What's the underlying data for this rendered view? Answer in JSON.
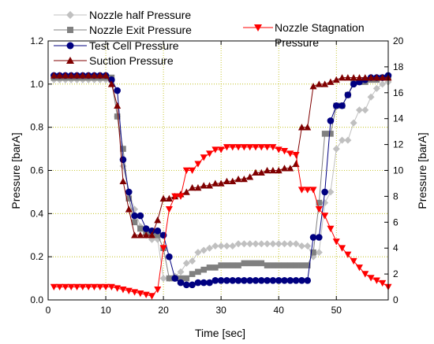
{
  "chart_data": {
    "type": "line",
    "xlabel": "Time [sec]",
    "ylabel_left": "Pressure [barA]",
    "ylabel_right": "Pressure [barA]",
    "xlim": [
      0,
      59
    ],
    "ylim_left": [
      0,
      1.2
    ],
    "ylim_right": [
      0,
      20
    ],
    "xticks": [
      "0",
      "10",
      "20",
      "30",
      "40",
      "50"
    ],
    "yticks_left": [
      "0.0",
      "0.2",
      "0.4",
      "0.6",
      "0.8",
      "1.0",
      "1.2"
    ],
    "yticks_right": [
      "0",
      "2",
      "4",
      "6",
      "8",
      "10",
      "12",
      "14",
      "16",
      "18",
      "20"
    ],
    "grid": true,
    "legend_left": "top-left",
    "legend_right": "top-right",
    "series": [
      {
        "name": "Nozzle half Pressure",
        "axis": "left",
        "marker": "diamond",
        "color": "#c0c0c0",
        "x": [
          1,
          2,
          3,
          4,
          5,
          6,
          7,
          8,
          9,
          10,
          11,
          12,
          13,
          14,
          15,
          16,
          17,
          18,
          19,
          20,
          21,
          22,
          23,
          24,
          25,
          26,
          27,
          28,
          29,
          30,
          31,
          32,
          33,
          34,
          35,
          36,
          37,
          38,
          39,
          40,
          41,
          42,
          43,
          44,
          45,
          46,
          47,
          48,
          49,
          50,
          51,
          52,
          53,
          54,
          55,
          56,
          57,
          58,
          59
        ],
        "values": [
          1.02,
          1.02,
          1.02,
          1.02,
          1.02,
          1.02,
          1.02,
          1.02,
          1.02,
          1.02,
          1.01,
          0.85,
          0.62,
          0.5,
          0.42,
          0.34,
          0.3,
          0.28,
          0.28,
          0.1,
          0.1,
          0.11,
          0.13,
          0.17,
          0.18,
          0.22,
          0.23,
          0.24,
          0.25,
          0.25,
          0.25,
          0.25,
          0.26,
          0.26,
          0.26,
          0.26,
          0.26,
          0.26,
          0.26,
          0.26,
          0.26,
          0.26,
          0.26,
          0.25,
          0.25,
          0.2,
          0.22,
          0.45,
          0.5,
          0.7,
          0.74,
          0.74,
          0.82,
          0.88,
          0.88,
          0.94,
          0.98,
          1.0,
          1.01
        ]
      },
      {
        "name": "Nozzle Exit Pressure",
        "axis": "left",
        "marker": "square",
        "color": "#808080",
        "x": [
          1,
          2,
          3,
          4,
          5,
          6,
          7,
          8,
          9,
          10,
          11,
          12,
          13,
          14,
          15,
          16,
          17,
          18,
          19,
          20,
          21,
          22,
          23,
          24,
          25,
          26,
          27,
          28,
          29,
          30,
          31,
          32,
          33,
          34,
          35,
          36,
          37,
          38,
          39,
          40,
          41,
          42,
          43,
          44,
          45,
          46,
          47,
          48,
          49,
          50,
          51,
          52,
          53,
          54,
          55,
          56,
          57,
          58,
          59
        ],
        "values": [
          1.03,
          1.03,
          1.03,
          1.03,
          1.03,
          1.03,
          1.03,
          1.03,
          1.03,
          1.03,
          1.03,
          0.85,
          0.7,
          0.47,
          0.36,
          0.33,
          0.31,
          0.3,
          0.3,
          0.24,
          0.1,
          0.1,
          0.1,
          0.1,
          0.12,
          0.13,
          0.14,
          0.15,
          0.15,
          0.16,
          0.16,
          0.16,
          0.16,
          0.17,
          0.17,
          0.17,
          0.17,
          0.16,
          0.16,
          0.16,
          0.16,
          0.16,
          0.16,
          0.16,
          0.16,
          0.22,
          0.45,
          0.77,
          0.77,
          0.9,
          0.9,
          0.95,
          1.01,
          1.01,
          1.01,
          1.02,
          1.02,
          1.03,
          1.03
        ]
      },
      {
        "name": "Test Cell Pressure",
        "axis": "left",
        "marker": "circle",
        "color": "#000080",
        "x": [
          1,
          2,
          3,
          4,
          5,
          6,
          7,
          8,
          9,
          10,
          11,
          12,
          13,
          14,
          15,
          16,
          17,
          18,
          19,
          20,
          21,
          22,
          23,
          24,
          25,
          26,
          27,
          28,
          29,
          30,
          31,
          32,
          33,
          34,
          35,
          36,
          37,
          38,
          39,
          40,
          41,
          42,
          43,
          44,
          45,
          46,
          47,
          48,
          49,
          50,
          51,
          52,
          53,
          54,
          55,
          56,
          57,
          58,
          59
        ],
        "values": [
          1.04,
          1.04,
          1.04,
          1.04,
          1.04,
          1.04,
          1.04,
          1.04,
          1.04,
          1.04,
          1.02,
          0.97,
          0.65,
          0.5,
          0.39,
          0.39,
          0.33,
          0.32,
          0.32,
          0.3,
          0.2,
          0.1,
          0.08,
          0.07,
          0.07,
          0.08,
          0.08,
          0.08,
          0.09,
          0.09,
          0.09,
          0.09,
          0.09,
          0.09,
          0.09,
          0.09,
          0.09,
          0.09,
          0.09,
          0.09,
          0.09,
          0.09,
          0.09,
          0.09,
          0.09,
          0.29,
          0.29,
          0.5,
          0.83,
          0.9,
          0.9,
          0.95,
          1.0,
          1.01,
          1.02,
          1.03,
          1.03,
          1.03,
          1.04
        ]
      },
      {
        "name": "Suction Pressure",
        "axis": "left",
        "marker": "triangle-up",
        "color": "#800000",
        "x": [
          1,
          2,
          3,
          4,
          5,
          6,
          7,
          8,
          9,
          10,
          11,
          12,
          13,
          14,
          15,
          16,
          17,
          18,
          19,
          20,
          21,
          22,
          23,
          24,
          25,
          26,
          27,
          28,
          29,
          30,
          31,
          32,
          33,
          34,
          35,
          36,
          37,
          38,
          39,
          40,
          41,
          42,
          43,
          44,
          45,
          46,
          47,
          48,
          49,
          50,
          51,
          52,
          53,
          54,
          55,
          56,
          57,
          58,
          59
        ],
        "values": [
          1.04,
          1.04,
          1.04,
          1.04,
          1.04,
          1.04,
          1.04,
          1.04,
          1.04,
          1.04,
          1.0,
          0.9,
          0.55,
          0.42,
          0.3,
          0.3,
          0.3,
          0.3,
          0.37,
          0.47,
          0.47,
          0.48,
          0.49,
          0.5,
          0.52,
          0.52,
          0.53,
          0.53,
          0.54,
          0.54,
          0.55,
          0.55,
          0.56,
          0.56,
          0.57,
          0.59,
          0.59,
          0.6,
          0.6,
          0.6,
          0.61,
          0.61,
          0.63,
          0.8,
          0.8,
          0.99,
          1.0,
          1.0,
          1.01,
          1.02,
          1.03,
          1.03,
          1.03,
          1.03,
          1.03,
          1.03,
          1.03,
          1.03,
          1.03
        ]
      },
      {
        "name": "Nozzle Stagnation Pressure",
        "axis": "right",
        "marker": "triangle-down",
        "color": "#ff0000",
        "x": [
          1,
          2,
          3,
          4,
          5,
          6,
          7,
          8,
          9,
          10,
          11,
          12,
          13,
          14,
          15,
          16,
          17,
          18,
          19,
          20,
          21,
          22,
          23,
          24,
          25,
          26,
          27,
          28,
          29,
          30,
          31,
          32,
          33,
          34,
          35,
          36,
          37,
          38,
          39,
          40,
          41,
          42,
          43,
          44,
          45,
          46,
          47,
          48,
          49,
          50,
          51,
          52,
          53,
          54,
          55,
          56,
          57,
          58,
          59
        ],
        "values": [
          1.0,
          1.0,
          1.0,
          1.0,
          1.0,
          1.0,
          1.0,
          1.0,
          1.0,
          1.0,
          1.0,
          0.9,
          0.8,
          0.7,
          0.6,
          0.5,
          0.4,
          0.3,
          0.8,
          4.0,
          7.0,
          8.0,
          8.0,
          10.0,
          10.0,
          10.5,
          11.0,
          11.3,
          11.6,
          11.6,
          11.8,
          11.8,
          11.8,
          11.8,
          11.8,
          11.8,
          11.8,
          11.8,
          11.8,
          11.6,
          11.5,
          11.3,
          11.2,
          8.5,
          8.5,
          8.5,
          7.0,
          6.5,
          5.5,
          4.5,
          4.0,
          3.5,
          3.0,
          2.5,
          2.0,
          1.7,
          1.5,
          1.3,
          1.0
        ]
      }
    ]
  }
}
